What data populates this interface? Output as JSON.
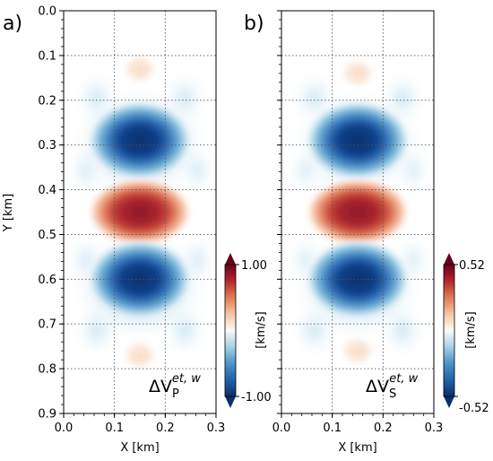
{
  "chart_data": [
    {
      "type": "heatmap",
      "panel_label": "a)",
      "xlabel": "X [km]",
      "ylabel": "Y [km]",
      "xlim": [
        0.0,
        0.3
      ],
      "ylim": [
        0.9,
        0.0
      ],
      "xticks": [
        "0.0",
        "0.1",
        "0.2",
        "0.3"
      ],
      "yticks": [
        "0.0",
        "0.1",
        "0.2",
        "0.3",
        "0.4",
        "0.5",
        "0.6",
        "0.7",
        "0.8",
        "0.9"
      ],
      "grid": true,
      "annotation": {
        "base": "ΔV",
        "sub": "P",
        "sup": "et, w"
      },
      "colorbar": {
        "label": "[km/s]",
        "max_label": "1.00",
        "min_label": "-1.00",
        "vmin": -1.0,
        "vmax": 1.0,
        "colormap": "RdBu_r"
      },
      "features": [
        {
          "x": 0.15,
          "y": 0.13,
          "value": 0.12
        },
        {
          "x": 0.15,
          "y": 0.29,
          "value": -1.0
        },
        {
          "x": 0.15,
          "y": 0.45,
          "value": 1.0
        },
        {
          "x": 0.15,
          "y": 0.6,
          "value": -1.0
        },
        {
          "x": 0.15,
          "y": 0.77,
          "value": 0.12
        }
      ]
    },
    {
      "type": "heatmap",
      "panel_label": "b)",
      "xlabel": "X [km]",
      "ylabel": "",
      "xlim": [
        0.0,
        0.3
      ],
      "ylim": [
        0.9,
        0.0
      ],
      "xticks": [
        "0.0",
        "0.1",
        "0.2",
        "0.3"
      ],
      "grid": true,
      "annotation": {
        "base": "ΔV",
        "sub": "S",
        "sup": "et, w"
      },
      "colorbar": {
        "label": "[km/s]",
        "max_label": "0.52",
        "min_label": "-0.52",
        "vmin": -0.52,
        "vmax": 0.52,
        "colormap": "RdBu_r"
      },
      "features": [
        {
          "x": 0.15,
          "y": 0.14,
          "value": 0.06
        },
        {
          "x": 0.15,
          "y": 0.29,
          "value": -0.52
        },
        {
          "x": 0.15,
          "y": 0.45,
          "value": 0.52
        },
        {
          "x": 0.15,
          "y": 0.6,
          "value": -0.52
        },
        {
          "x": 0.15,
          "y": 0.76,
          "value": 0.06
        }
      ]
    }
  ]
}
